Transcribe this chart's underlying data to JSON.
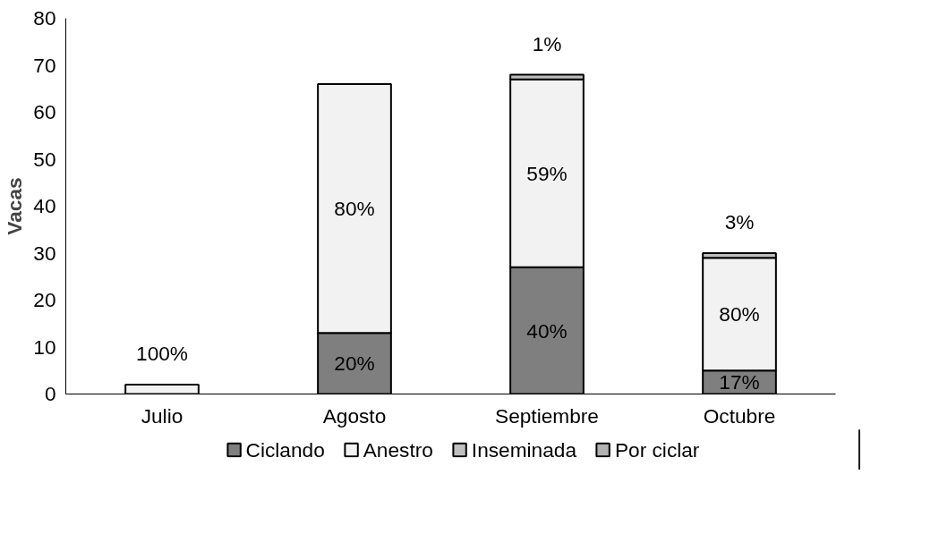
{
  "chart_data": {
    "type": "bar",
    "stacked": true,
    "ylabel": "Vacas",
    "categories": [
      "Julio",
      "Agosto",
      "Septiembre",
      "Octubre"
    ],
    "series": [
      {
        "name": "Ciclando",
        "color": "#7f7f7f",
        "values": [
          0,
          13,
          27,
          5
        ]
      },
      {
        "name": "Anestro",
        "color": "#f2f2f2",
        "values": [
          2,
          53,
          40,
          24
        ]
      },
      {
        "name": "Inseminada",
        "color": "#bfbfbf",
        "values": [
          0,
          0,
          1,
          1
        ]
      },
      {
        "name": "Por ciclar",
        "color": "#b2b2b2",
        "values": [
          0,
          0,
          0,
          0
        ]
      }
    ],
    "annotations": [
      "100%",
      "20%",
      "80%",
      "40%",
      "59%",
      "1%",
      "17%",
      "80%",
      "3%"
    ],
    "ylim": [
      0,
      80
    ],
    "yticks": [
      0,
      10,
      20,
      30,
      40,
      50,
      60,
      70,
      80
    ],
    "grid": false,
    "legend": "bottom"
  }
}
